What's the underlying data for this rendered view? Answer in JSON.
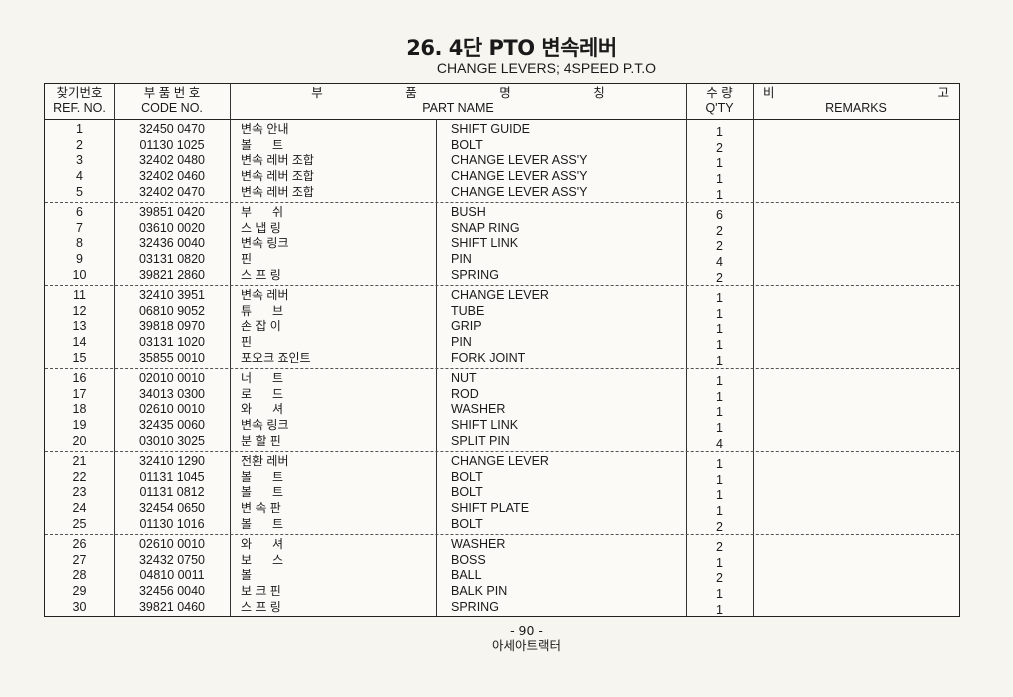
{
  "title": "26. 4단 PTO 변속레버",
  "subtitle": "CHANGE LEVERS; 4SPEED P.T.O",
  "headers": {
    "ref_kr": "찾기번호",
    "ref_en": "REF. NO.",
    "code_kr": "부 품 번 호",
    "code_en": "CODE NO.",
    "name_kr": [
      "부",
      "품",
      "명",
      "칭"
    ],
    "name_en": "PART NAME",
    "qty_kr": "수 량",
    "qty_en": "Q'TY",
    "remarks_kr": [
      "비",
      "고"
    ],
    "remarks_en": "REMARKS"
  },
  "rows": [
    {
      "ref": "1",
      "code": "32450 0470",
      "kr": "변속 안내",
      "en": "SHIFT GUIDE",
      "qty": "1"
    },
    {
      "ref": "2",
      "code": "01130 1025",
      "kr": "볼      트",
      "en": "BOLT",
      "qty": "2"
    },
    {
      "ref": "3",
      "code": "32402 0480",
      "kr": "변속 레버 조합",
      "en": "CHANGE LEVER ASS'Y",
      "qty": "1"
    },
    {
      "ref": "4",
      "code": "32402 0460",
      "kr": "변속 레버 조합",
      "en": "CHANGE LEVER ASS'Y",
      "qty": "1"
    },
    {
      "ref": "5",
      "code": "32402 0470",
      "kr": "변속 레버 조합",
      "en": "CHANGE LEVER ASS'Y",
      "qty": "1"
    },
    {
      "ref": "6",
      "code": "39851 0420",
      "kr": "부      쉬",
      "en": "BUSH",
      "qty": "6"
    },
    {
      "ref": "7",
      "code": "03610 0020",
      "kr": "스 냅 링",
      "en": "SNAP RING",
      "qty": "2"
    },
    {
      "ref": "8",
      "code": "32436 0040",
      "kr": "변속 링크",
      "en": "SHIFT LINK",
      "qty": "2"
    },
    {
      "ref": "9",
      "code": "03131 0820",
      "kr": "핀",
      "en": "PIN",
      "qty": "4"
    },
    {
      "ref": "10",
      "code": "39821 2860",
      "kr": "스 프 링",
      "en": "SPRING",
      "qty": "2"
    },
    {
      "ref": "11",
      "code": "32410 3951",
      "kr": "변속 레버",
      "en": "CHANGE LEVER",
      "qty": "1"
    },
    {
      "ref": "12",
      "code": "06810 9052",
      "kr": "튜      브",
      "en": "TUBE",
      "qty": "1"
    },
    {
      "ref": "13",
      "code": "39818 0970",
      "kr": "손 잡 이",
      "en": "GRIP",
      "qty": "1"
    },
    {
      "ref": "14",
      "code": "03131 1020",
      "kr": "핀",
      "en": "PIN",
      "qty": "1"
    },
    {
      "ref": "15",
      "code": "35855 0010",
      "kr": "포오크 죠인트",
      "en": "FORK JOINT",
      "qty": "1"
    },
    {
      "ref": "16",
      "code": "02010 0010",
      "kr": "너      트",
      "en": "NUT",
      "qty": "1"
    },
    {
      "ref": "17",
      "code": "34013 0300",
      "kr": "로      드",
      "en": "ROD",
      "qty": "1"
    },
    {
      "ref": "18",
      "code": "02610 0010",
      "kr": "와      셔",
      "en": "WASHER",
      "qty": "1"
    },
    {
      "ref": "19",
      "code": "32435 0060",
      "kr": "변속 링크",
      "en": "SHIFT LINK",
      "qty": "1"
    },
    {
      "ref": "20",
      "code": "03010 3025",
      "kr": "분 할 핀",
      "en": "SPLIT PIN",
      "qty": "4"
    },
    {
      "ref": "21",
      "code": "32410 1290",
      "kr": "전환 레버",
      "en": "CHANGE LEVER",
      "qty": "1"
    },
    {
      "ref": "22",
      "code": "01131 1045",
      "kr": "볼      트",
      "en": "BOLT",
      "qty": "1"
    },
    {
      "ref": "23",
      "code": "01131 0812",
      "kr": "볼      트",
      "en": "BOLT",
      "qty": "1"
    },
    {
      "ref": "24",
      "code": "32454 0650",
      "kr": "변 속 판",
      "en": "SHIFT PLATE",
      "qty": "1"
    },
    {
      "ref": "25",
      "code": "01130 1016",
      "kr": "볼      트",
      "en": "BOLT",
      "qty": "2"
    },
    {
      "ref": "26",
      "code": "02610 0010",
      "kr": "와      셔",
      "en": "WASHER",
      "qty": "2"
    },
    {
      "ref": "27",
      "code": "32432 0750",
      "kr": "보      스",
      "en": "BOSS",
      "qty": "1"
    },
    {
      "ref": "28",
      "code": "04810 0011",
      "kr": "볼",
      "en": "BALL",
      "qty": "2"
    },
    {
      "ref": "29",
      "code": "32456 0040",
      "kr": "보 크 핀",
      "en": "BALK PIN",
      "qty": "1"
    },
    {
      "ref": "30",
      "code": "39821 0460",
      "kr": "스 프 링",
      "en": "SPRING",
      "qty": "1"
    }
  ],
  "footer": {
    "page": "- 90 -",
    "publisher": "아세아트랙터"
  }
}
